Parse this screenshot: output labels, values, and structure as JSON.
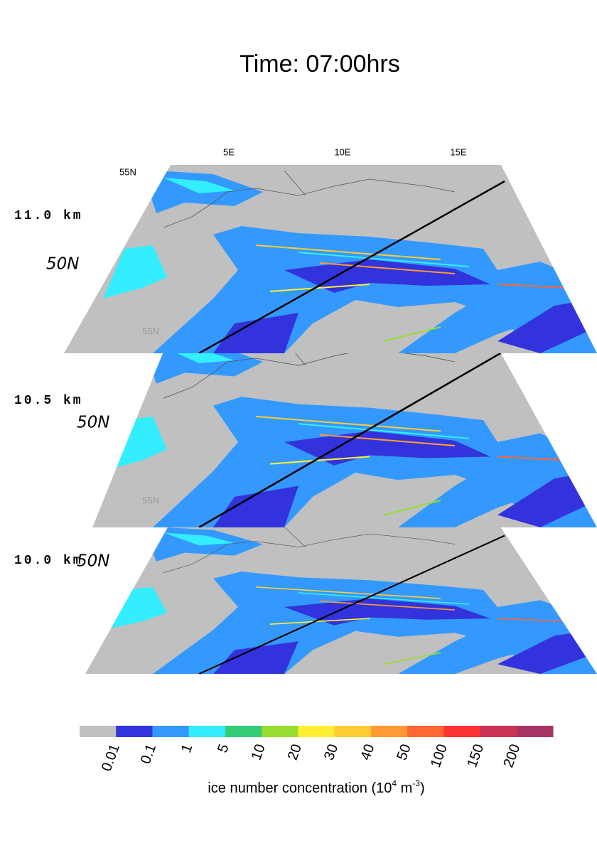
{
  "title": "Time: 07:00hrs",
  "panels": [
    {
      "level": "11.0 km",
      "lon_labels": [
        "5E",
        "10E",
        "15E"
      ],
      "lat_labels": [
        "55N",
        "50N"
      ],
      "shadow_label": "55N"
    },
    {
      "level": "10.5 km",
      "lat_labels": [
        "50N"
      ],
      "shadow_label": "55N"
    },
    {
      "level": "10.0 km",
      "lat_labels": [
        "50N"
      ]
    }
  ],
  "colorbar": {
    "colors": [
      "#c0c0c0",
      "#3333dd",
      "#3399ff",
      "#33eeff",
      "#33cc77",
      "#99dd33",
      "#ffee33",
      "#ffcc33",
      "#ff9933",
      "#ff6633",
      "#ff3333",
      "#cc3355",
      "#aa3366"
    ],
    "labels": [
      "0.01",
      "0.1",
      "1",
      "5",
      "10",
      "20",
      "30",
      "40",
      "50",
      "100",
      "150",
      "200"
    ],
    "title_parts": [
      {
        "text": "ice number concentration (10"
      },
      {
        "text": "4",
        "sup": true
      },
      {
        "text": " m"
      },
      {
        "text": "-3",
        "sup": true
      },
      {
        "text": ")"
      }
    ]
  }
}
